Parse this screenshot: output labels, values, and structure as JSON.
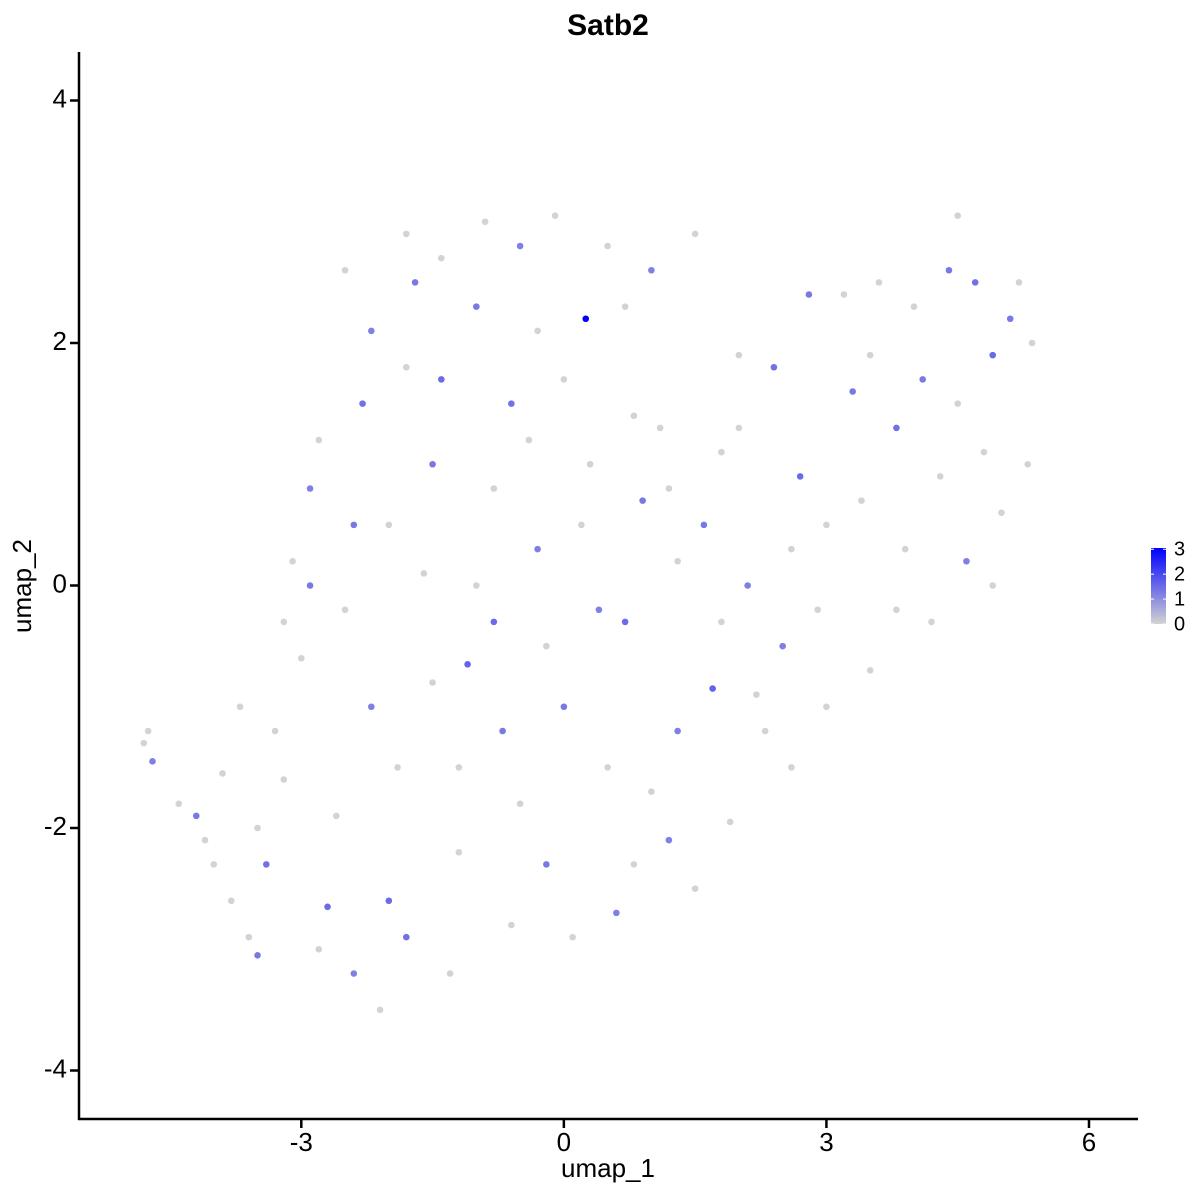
{
  "chart_data": {
    "type": "scatter",
    "title": "Satb2",
    "x_label": "umap_1",
    "y_label": "umap_2",
    "xlim": [
      -5.54,
      6.56
    ],
    "ylim": [
      -4.4,
      4.4
    ],
    "xticks": [
      -3,
      0,
      3,
      6
    ],
    "yticks": [
      -4,
      -2,
      0,
      2,
      4
    ],
    "low_color": "#d3d3d3",
    "high_color": "#0000ff",
    "clim": [
      0,
      3.05
    ],
    "colorbar_ticks": [
      0,
      1,
      2,
      3
    ],
    "x": [
      -4.8,
      -4.75,
      -4.7,
      -4.4,
      -4.2,
      -4.1,
      -3.9,
      -3.8,
      -3.6,
      -3.5,
      -3.4,
      -3.3,
      -3.2,
      -3.1,
      -3.0,
      -2.9,
      -2.8,
      -2.7,
      -2.6,
      -2.5,
      -2.4,
      -2.3,
      -2.2,
      -2.1,
      -2.0,
      -1.9,
      -1.8,
      -1.7,
      -1.6,
      -1.5,
      -1.4,
      -1.3,
      -1.2,
      -1.1,
      -1.0,
      -0.9,
      -0.8,
      -0.7,
      -0.6,
      -0.5,
      -0.4,
      -0.3,
      -0.2,
      -0.1,
      0.0,
      0.1,
      0.3,
      0.4,
      0.5,
      0.6,
      0.7,
      0.8,
      0.9,
      1.0,
      1.1,
      1.2,
      1.3,
      1.5,
      1.6,
      1.7,
      1.8,
      1.9,
      2.0,
      2.1,
      2.3,
      2.4,
      2.6,
      2.7,
      2.8,
      2.9,
      3.0,
      3.2,
      3.3,
      3.4,
      3.5,
      3.6,
      3.8,
      3.9,
      4.0,
      4.1,
      4.2,
      4.3,
      4.4,
      4.5,
      4.6,
      4.7,
      4.8,
      4.9,
      5.0,
      5.1,
      5.2,
      5.3,
      5.35,
      -3.7,
      -2.2,
      -1.0,
      0.5,
      1.5,
      2.5,
      3.0,
      -2.5,
      -1.5,
      0.0,
      1.0,
      2.0,
      3.5,
      4.5,
      -3.5,
      -2.8,
      -1.8,
      -0.5,
      0.8,
      1.8,
      2.2,
      -0.8,
      -2.0,
      -1.2,
      0.2,
      -0.3,
      -1.8,
      -2.9,
      3.8,
      4.9,
      2.6,
      1.3,
      -0.2,
      -3.2,
      -4.0,
      -2.4,
      -1.4,
      0.7,
      1.2,
      -0.6,
      0.25
    ],
    "y": [
      -1.3,
      -1.2,
      -1.45,
      -1.8,
      -1.9,
      -2.1,
      -1.55,
      -2.6,
      -2.9,
      -3.05,
      -2.3,
      -1.2,
      -0.3,
      0.2,
      -0.6,
      0.8,
      1.2,
      -2.65,
      -1.9,
      -0.2,
      0.5,
      1.5,
      2.1,
      -3.5,
      -2.6,
      -1.5,
      2.9,
      2.5,
      0.1,
      -0.8,
      1.7,
      -3.2,
      -2.2,
      -0.65,
      2.3,
      3.0,
      0.8,
      -1.2,
      -2.8,
      2.8,
      1.2,
      0.3,
      -0.5,
      3.05,
      -1.0,
      -2.9,
      1.0,
      -0.2,
      2.8,
      -2.7,
      -0.3,
      1.4,
      0.7,
      -1.7,
      1.3,
      -2.1,
      0.2,
      2.9,
      0.5,
      -0.85,
      1.1,
      -1.95,
      1.9,
      0.0,
      -1.2,
      1.8,
      -1.5,
      0.9,
      2.4,
      -0.2,
      -1.0,
      2.4,
      1.6,
      0.7,
      -0.7,
      2.5,
      1.3,
      0.3,
      2.3,
      1.7,
      -0.3,
      0.9,
      2.6,
      3.05,
      0.2,
      2.5,
      1.1,
      1.9,
      0.6,
      2.2,
      2.5,
      1.0,
      2.0,
      -1.0,
      -1.0,
      0.0,
      -1.5,
      -2.5,
      -0.5,
      0.5,
      2.6,
      1.0,
      1.7,
      2.6,
      1.3,
      1.9,
      1.5,
      -2.0,
      -3.0,
      -2.9,
      -1.8,
      -2.3,
      -0.3,
      -0.9,
      -0.3,
      0.5,
      -1.5,
      0.5,
      2.1,
      1.8,
      0.0,
      -0.2,
      0.0,
      0.3,
      -1.2,
      -2.3,
      -1.6,
      -2.3,
      -3.2,
      2.7,
      2.3,
      0.8,
      1.5,
      2.2
    ],
    "values": [
      0,
      0,
      1.2,
      0,
      1.3,
      0,
      0,
      0,
      0,
      1.3,
      1.4,
      0,
      0,
      0,
      0,
      1.2,
      0,
      1.5,
      0,
      0,
      1.3,
      1.4,
      1.2,
      0,
      1.5,
      0,
      0,
      1.3,
      0,
      0,
      1.5,
      0,
      0,
      1.6,
      1.3,
      0,
      0,
      1.3,
      0,
      1.2,
      0,
      1.2,
      0,
      0,
      1.3,
      0,
      0,
      1.2,
      0,
      1.2,
      1.5,
      0,
      1.3,
      0,
      0,
      1.2,
      0,
      0,
      1.3,
      1.6,
      0,
      0,
      0,
      1.2,
      0,
      1.4,
      0,
      1.5,
      1.3,
      0,
      0,
      0,
      1.3,
      0,
      0,
      0,
      1.4,
      0,
      0,
      1.3,
      0,
      0,
      1.3,
      0,
      1.2,
      1.4,
      0,
      1.5,
      0,
      1.3,
      0,
      0,
      0,
      0,
      1.2,
      0,
      0,
      0,
      1.2,
      0,
      0,
      1.3,
      0,
      1.2,
      0,
      0,
      0,
      0,
      0,
      1.4,
      0,
      0,
      0,
      0,
      1.5,
      0,
      0,
      0,
      0,
      0,
      1.3,
      0,
      0,
      0,
      1.2,
      1.3,
      0,
      0,
      1.2,
      0,
      0,
      0,
      1.4,
      3.05
    ]
  }
}
